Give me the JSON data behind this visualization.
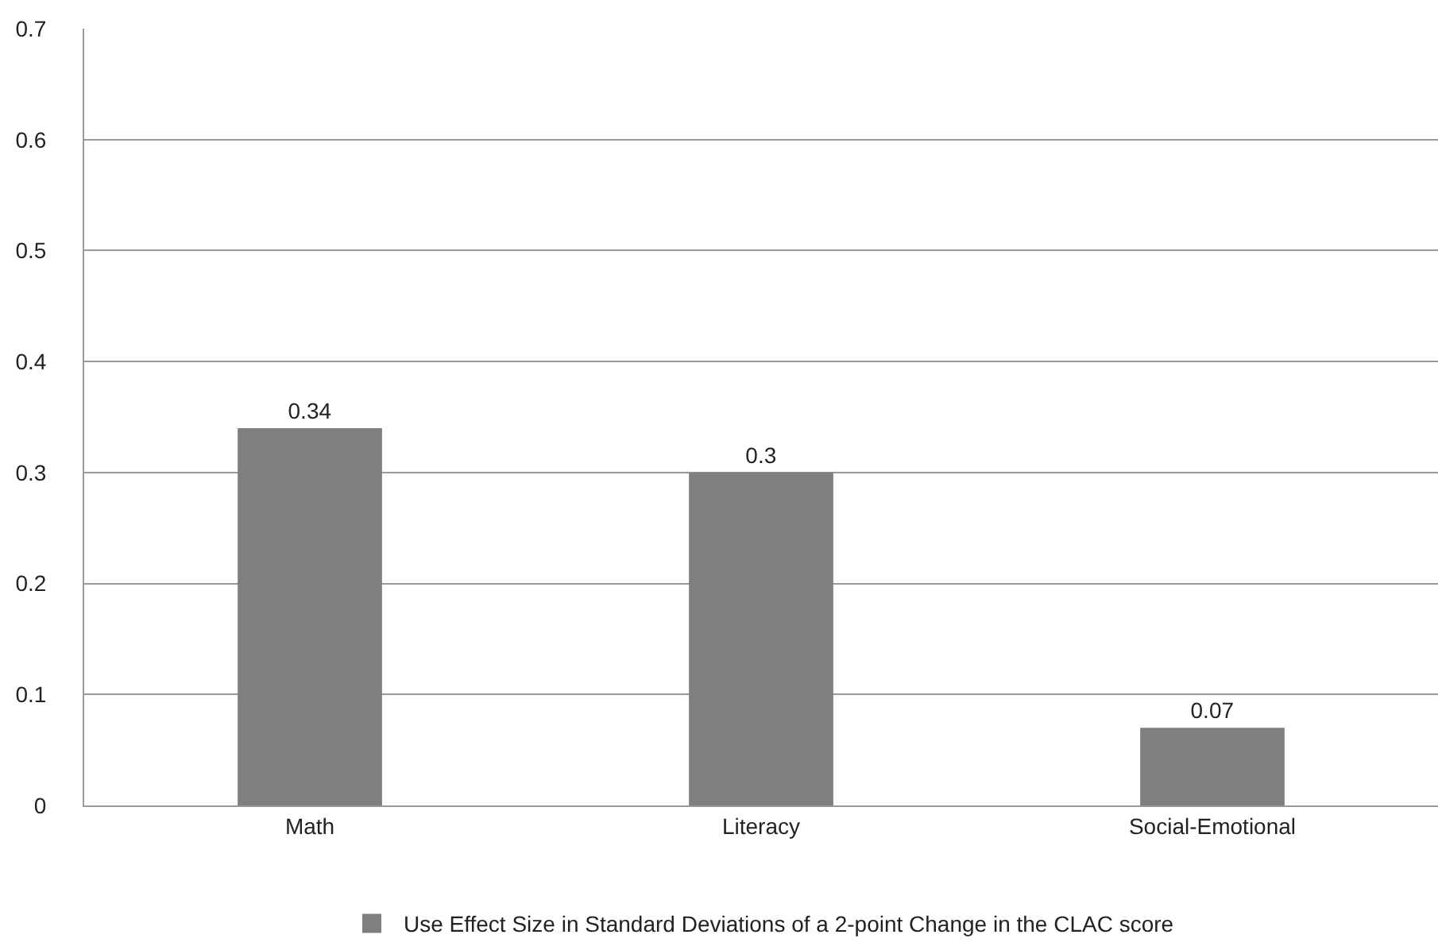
{
  "chart_data": {
    "type": "bar",
    "categories": [
      "Math",
      "Literacy",
      "Social-Emotional"
    ],
    "series": [
      {
        "name": "Use Effect Size in Standard Deviations of a 2-point Change in the CLAC score",
        "color": "#7f7f7f",
        "values": [
          0.34,
          0.3,
          0.07
        ]
      }
    ],
    "ylim": [
      0,
      0.7
    ],
    "yticks": [
      0,
      0.1,
      0.2,
      0.3,
      0.4,
      0.5,
      0.6,
      0.7
    ],
    "grid": "y",
    "legend": "bottom",
    "data_labels": true
  }
}
